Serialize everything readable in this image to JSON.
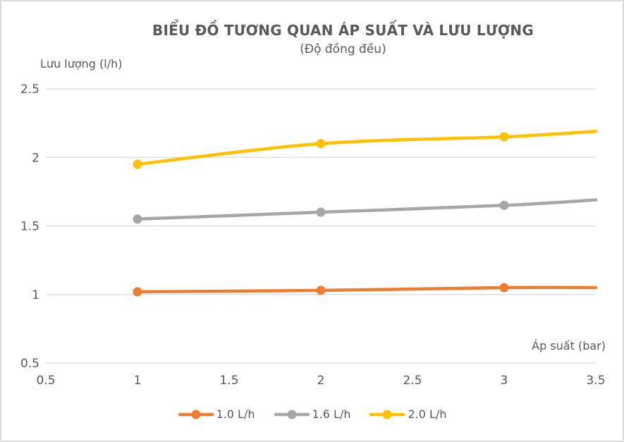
{
  "frame": {
    "background": "#FFFFFF",
    "border_color": "#DCDCDC"
  },
  "chart_data": {
    "type": "line",
    "title": "BIỂU ĐỒ TƯƠNG QUAN ÁP SUẤT VÀ LƯU LƯỢNG",
    "subtitle": "(Độ đồng đều)",
    "xlabel": "Áp suất (bar)",
    "ylabel": "Lưu lượng (l/h)",
    "xlim": [
      0.5,
      3.5
    ],
    "ylim": [
      0.5,
      2.5
    ],
    "x_ticks": [
      0.5,
      1,
      1.5,
      2,
      2.5,
      3,
      3.5
    ],
    "y_ticks": [
      2.5,
      2,
      1.5,
      1,
      0.5
    ],
    "grid": "horizontal-only",
    "gridline_color": "#D9D9D9",
    "text_color": "#595959",
    "legend_position": "bottom",
    "x": [
      1,
      2,
      3,
      3.5
    ],
    "marker_x": [
      1,
      2,
      3
    ],
    "series": [
      {
        "name": "1.0 L/h",
        "color": "#ED7D31",
        "values": [
          1.02,
          1.03,
          1.05,
          1.05
        ]
      },
      {
        "name": "1.6 L/h",
        "color": "#A6A6A6",
        "values": [
          1.55,
          1.6,
          1.65,
          1.69
        ]
      },
      {
        "name": "2.0 L/h",
        "color": "#FFC000",
        "values": [
          1.95,
          2.1,
          2.15,
          2.19
        ]
      }
    ]
  }
}
